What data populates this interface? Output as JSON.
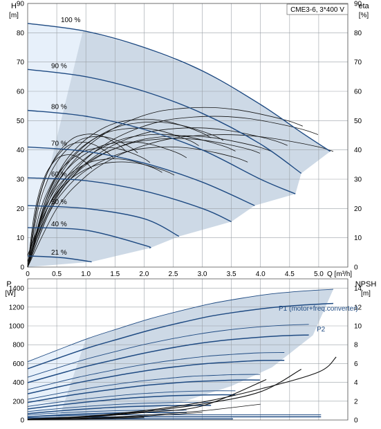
{
  "chart_data": [
    {
      "type": "line",
      "model_label": "CME3-6, 3*400 V",
      "ylabel_left": [
        "H",
        "[m]"
      ],
      "ylabel_right": [
        "eta",
        "[%]"
      ],
      "xlabel": "Q [m³/h]",
      "xlim": [
        0,
        5.5
      ],
      "ylim": [
        0,
        90
      ],
      "eta_lim": [
        0,
        90
      ],
      "x_ticks": [
        "0",
        "0.5",
        "1.0",
        "1.5",
        "2.0",
        "2.5",
        "3.0",
        "3.5",
        "4.0",
        "4.5",
        "5.0"
      ],
      "y_ticks": [
        "0",
        "10",
        "20",
        "30",
        "40",
        "50",
        "60",
        "70",
        "80",
        "90"
      ],
      "grid": true,
      "operating_area_color": "#cdd9e6",
      "speed_curves": [
        {
          "label": "100 %",
          "x": [
            0,
            1.0,
            2.0,
            3.0,
            4.0,
            4.7,
            5.2
          ],
          "y": [
            83.2,
            80.5,
            75,
            67,
            55.5,
            46,
            39.5
          ]
        },
        {
          "label": "90 %",
          "x": [
            0,
            1.0,
            2.0,
            3.0,
            4.0,
            4.7
          ],
          "y": [
            67.5,
            65,
            60,
            52.5,
            42,
            32
          ]
        },
        {
          "label": "80 %",
          "x": [
            0,
            1.0,
            2.0,
            3.0,
            4.0,
            4.6
          ],
          "y": [
            53.5,
            51.5,
            47,
            40,
            30,
            25
          ]
        },
        {
          "label": "70 %",
          "x": [
            0,
            1.0,
            2.0,
            3.0,
            3.9
          ],
          "y": [
            41,
            39.5,
            35.5,
            29,
            21
          ]
        },
        {
          "label": "60 %",
          "x": [
            0,
            1.0,
            2.0,
            3.0,
            3.5
          ],
          "y": [
            30.5,
            29.5,
            26,
            20,
            15.5
          ]
        },
        {
          "label": "50 %",
          "x": [
            0,
            1.0,
            2.0,
            2.6
          ],
          "y": [
            21,
            20,
            16.5,
            10.5
          ]
        },
        {
          "label": "40 %",
          "x": [
            0,
            1.0,
            2.0,
            2.1
          ],
          "y": [
            13.5,
            12.6,
            7.5,
            6.5
          ]
        },
        {
          "label": "21 %",
          "x": [
            0,
            0.6,
            1.1
          ],
          "y": [
            3.8,
            3.2,
            1.8
          ]
        }
      ],
      "eta_curve_100": {
        "x": [
          0,
          0.5,
          1.0,
          1.5,
          2.0,
          2.5,
          3.0,
          3.5,
          4.0,
          4.5,
          5.0,
          5.25
        ],
        "y": [
          0,
          20,
          31,
          37.5,
          41.5,
          44,
          45,
          45.2,
          44.5,
          43,
          41,
          39.5
        ]
      }
    },
    {
      "type": "line",
      "ylabel_left": [
        "P",
        "[W]"
      ],
      "ylabel_right": [
        "NPSH",
        "[m]"
      ],
      "xlim": [
        0,
        5.5
      ],
      "ylim": [
        0,
        1500
      ],
      "npsh_lim": [
        0,
        15
      ],
      "y_ticks": [
        "0",
        "200",
        "400",
        "600",
        "800",
        "1000",
        "1200",
        "1400"
      ],
      "npsh_ticks": [
        "0",
        "2",
        "4",
        "6",
        "8",
        "10",
        "12",
        "14"
      ],
      "grid": true,
      "series_labels": [
        "P1 (motor+freq.converter)",
        "P2"
      ],
      "p1_100": {
        "x": [
          0,
          1.0,
          2.0,
          3.0,
          4.0,
          5.0,
          5.3
        ],
        "y": [
          620,
          860,
          1060,
          1220,
          1330,
          1385,
          1390
        ]
      },
      "p2_100": {
        "x": [
          0,
          1.0,
          2.0,
          3.0,
          4.0,
          5.0,
          5.3
        ],
        "y": [
          545,
          760,
          940,
          1090,
          1185,
          1235,
          1240
        ]
      },
      "npsh_curves": [
        {
          "x": [
            0,
            1.0,
            2.0,
            3.0,
            4.0,
            5.0,
            5.3
          ],
          "y": [
            0.1,
            0.4,
            1.0,
            1.9,
            3.3,
            5.1,
            6.7
          ]
        },
        {
          "x": [
            0,
            1.0,
            2.0,
            3.0,
            4.0,
            4.7
          ],
          "y": [
            0.1,
            0.35,
            0.9,
            1.7,
            3.0,
            5.4
          ]
        },
        {
          "x": [
            0,
            1.0,
            2.0,
            3.0,
            4.1
          ],
          "y": [
            0.1,
            0.3,
            0.8,
            1.5,
            4.3
          ]
        }
      ]
    }
  ]
}
